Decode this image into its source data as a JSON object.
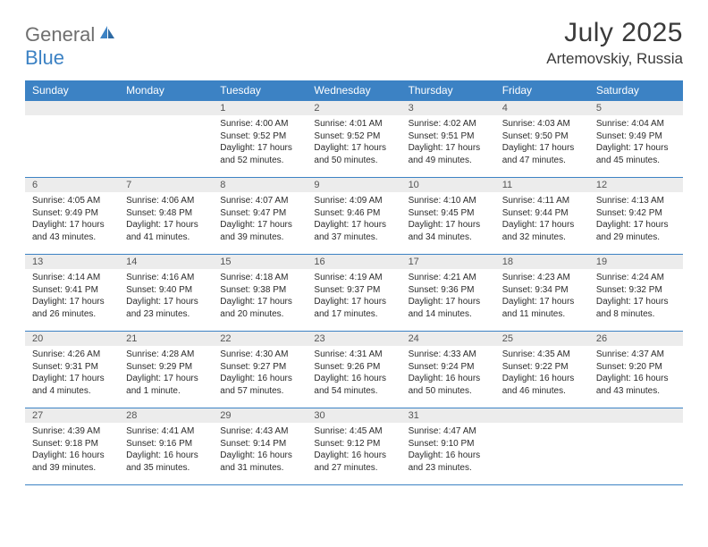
{
  "brand": {
    "part1": "General",
    "part2": "Blue"
  },
  "title": "July 2025",
  "location": "Artemovskiy, Russia",
  "colors": {
    "accent": "#3c82c4",
    "header_bg": "#3c82c4",
    "header_text": "#ffffff",
    "daynum_bg": "#ececec",
    "border": "#3c82c4",
    "text": "#2b2b2b",
    "logo_gray": "#6f6f6f"
  },
  "typography": {
    "title_fontsize": 30,
    "location_fontsize": 17,
    "weekday_fontsize": 12,
    "daynum_fontsize": 11,
    "body_fontsize": 10
  },
  "weekdays": [
    "Sunday",
    "Monday",
    "Tuesday",
    "Wednesday",
    "Thursday",
    "Friday",
    "Saturday"
  ],
  "weeks": [
    [
      {
        "day": "",
        "sunrise": "",
        "sunset": "",
        "daylight": ""
      },
      {
        "day": "",
        "sunrise": "",
        "sunset": "",
        "daylight": ""
      },
      {
        "day": "1",
        "sunrise": "Sunrise: 4:00 AM",
        "sunset": "Sunset: 9:52 PM",
        "daylight": "Daylight: 17 hours and 52 minutes."
      },
      {
        "day": "2",
        "sunrise": "Sunrise: 4:01 AM",
        "sunset": "Sunset: 9:52 PM",
        "daylight": "Daylight: 17 hours and 50 minutes."
      },
      {
        "day": "3",
        "sunrise": "Sunrise: 4:02 AM",
        "sunset": "Sunset: 9:51 PM",
        "daylight": "Daylight: 17 hours and 49 minutes."
      },
      {
        "day": "4",
        "sunrise": "Sunrise: 4:03 AM",
        "sunset": "Sunset: 9:50 PM",
        "daylight": "Daylight: 17 hours and 47 minutes."
      },
      {
        "day": "5",
        "sunrise": "Sunrise: 4:04 AM",
        "sunset": "Sunset: 9:49 PM",
        "daylight": "Daylight: 17 hours and 45 minutes."
      }
    ],
    [
      {
        "day": "6",
        "sunrise": "Sunrise: 4:05 AM",
        "sunset": "Sunset: 9:49 PM",
        "daylight": "Daylight: 17 hours and 43 minutes."
      },
      {
        "day": "7",
        "sunrise": "Sunrise: 4:06 AM",
        "sunset": "Sunset: 9:48 PM",
        "daylight": "Daylight: 17 hours and 41 minutes."
      },
      {
        "day": "8",
        "sunrise": "Sunrise: 4:07 AM",
        "sunset": "Sunset: 9:47 PM",
        "daylight": "Daylight: 17 hours and 39 minutes."
      },
      {
        "day": "9",
        "sunrise": "Sunrise: 4:09 AM",
        "sunset": "Sunset: 9:46 PM",
        "daylight": "Daylight: 17 hours and 37 minutes."
      },
      {
        "day": "10",
        "sunrise": "Sunrise: 4:10 AM",
        "sunset": "Sunset: 9:45 PM",
        "daylight": "Daylight: 17 hours and 34 minutes."
      },
      {
        "day": "11",
        "sunrise": "Sunrise: 4:11 AM",
        "sunset": "Sunset: 9:44 PM",
        "daylight": "Daylight: 17 hours and 32 minutes."
      },
      {
        "day": "12",
        "sunrise": "Sunrise: 4:13 AM",
        "sunset": "Sunset: 9:42 PM",
        "daylight": "Daylight: 17 hours and 29 minutes."
      }
    ],
    [
      {
        "day": "13",
        "sunrise": "Sunrise: 4:14 AM",
        "sunset": "Sunset: 9:41 PM",
        "daylight": "Daylight: 17 hours and 26 minutes."
      },
      {
        "day": "14",
        "sunrise": "Sunrise: 4:16 AM",
        "sunset": "Sunset: 9:40 PM",
        "daylight": "Daylight: 17 hours and 23 minutes."
      },
      {
        "day": "15",
        "sunrise": "Sunrise: 4:18 AM",
        "sunset": "Sunset: 9:38 PM",
        "daylight": "Daylight: 17 hours and 20 minutes."
      },
      {
        "day": "16",
        "sunrise": "Sunrise: 4:19 AM",
        "sunset": "Sunset: 9:37 PM",
        "daylight": "Daylight: 17 hours and 17 minutes."
      },
      {
        "day": "17",
        "sunrise": "Sunrise: 4:21 AM",
        "sunset": "Sunset: 9:36 PM",
        "daylight": "Daylight: 17 hours and 14 minutes."
      },
      {
        "day": "18",
        "sunrise": "Sunrise: 4:23 AM",
        "sunset": "Sunset: 9:34 PM",
        "daylight": "Daylight: 17 hours and 11 minutes."
      },
      {
        "day": "19",
        "sunrise": "Sunrise: 4:24 AM",
        "sunset": "Sunset: 9:32 PM",
        "daylight": "Daylight: 17 hours and 8 minutes."
      }
    ],
    [
      {
        "day": "20",
        "sunrise": "Sunrise: 4:26 AM",
        "sunset": "Sunset: 9:31 PM",
        "daylight": "Daylight: 17 hours and 4 minutes."
      },
      {
        "day": "21",
        "sunrise": "Sunrise: 4:28 AM",
        "sunset": "Sunset: 9:29 PM",
        "daylight": "Daylight: 17 hours and 1 minute."
      },
      {
        "day": "22",
        "sunrise": "Sunrise: 4:30 AM",
        "sunset": "Sunset: 9:27 PM",
        "daylight": "Daylight: 16 hours and 57 minutes."
      },
      {
        "day": "23",
        "sunrise": "Sunrise: 4:31 AM",
        "sunset": "Sunset: 9:26 PM",
        "daylight": "Daylight: 16 hours and 54 minutes."
      },
      {
        "day": "24",
        "sunrise": "Sunrise: 4:33 AM",
        "sunset": "Sunset: 9:24 PM",
        "daylight": "Daylight: 16 hours and 50 minutes."
      },
      {
        "day": "25",
        "sunrise": "Sunrise: 4:35 AM",
        "sunset": "Sunset: 9:22 PM",
        "daylight": "Daylight: 16 hours and 46 minutes."
      },
      {
        "day": "26",
        "sunrise": "Sunrise: 4:37 AM",
        "sunset": "Sunset: 9:20 PM",
        "daylight": "Daylight: 16 hours and 43 minutes."
      }
    ],
    [
      {
        "day": "27",
        "sunrise": "Sunrise: 4:39 AM",
        "sunset": "Sunset: 9:18 PM",
        "daylight": "Daylight: 16 hours and 39 minutes."
      },
      {
        "day": "28",
        "sunrise": "Sunrise: 4:41 AM",
        "sunset": "Sunset: 9:16 PM",
        "daylight": "Daylight: 16 hours and 35 minutes."
      },
      {
        "day": "29",
        "sunrise": "Sunrise: 4:43 AM",
        "sunset": "Sunset: 9:14 PM",
        "daylight": "Daylight: 16 hours and 31 minutes."
      },
      {
        "day": "30",
        "sunrise": "Sunrise: 4:45 AM",
        "sunset": "Sunset: 9:12 PM",
        "daylight": "Daylight: 16 hours and 27 minutes."
      },
      {
        "day": "31",
        "sunrise": "Sunrise: 4:47 AM",
        "sunset": "Sunset: 9:10 PM",
        "daylight": "Daylight: 16 hours and 23 minutes."
      },
      {
        "day": "",
        "sunrise": "",
        "sunset": "",
        "daylight": ""
      },
      {
        "day": "",
        "sunrise": "",
        "sunset": "",
        "daylight": ""
      }
    ]
  ]
}
